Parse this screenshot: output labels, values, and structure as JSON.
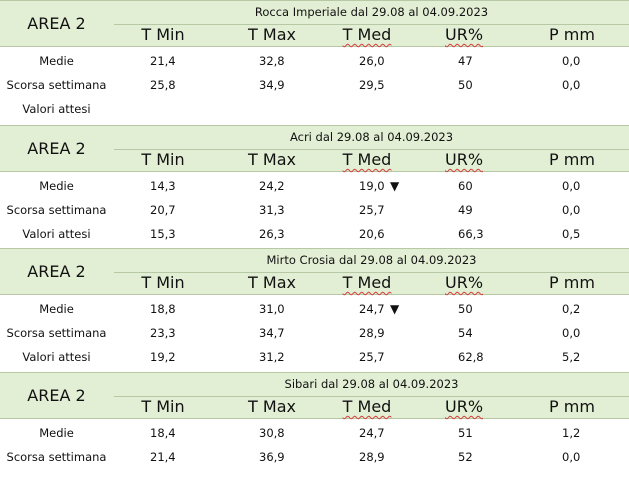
{
  "blocks": [
    {
      "area": "AREA 2",
      "title": "Rocca Imperiale  dal 29.08 al 04.09.2023",
      "headers": [
        "T Min",
        "T Max",
        "T Med",
        "UR%",
        "P mm"
      ],
      "rows": [
        {
          "label": "Medie",
          "values": [
            "21,4",
            "32,8",
            "26,0",
            "47",
            "0,0"
          ],
          "arrow": ""
        },
        {
          "label": "Scorsa settimana",
          "values": [
            "25,8",
            "34,9",
            "29,5",
            "50",
            "0,0"
          ],
          "arrow": ""
        },
        {
          "label": "Valori attesi",
          "values": [
            "",
            "",
            "",
            "",
            ""
          ],
          "arrow": ""
        }
      ]
    },
    {
      "area": "AREA 2",
      "title": "Acri dal 29.08 al 04.09.2023",
      "headers": [
        "T Min",
        "T Max",
        "T Med",
        "UR%",
        "P mm"
      ],
      "rows": [
        {
          "label": "Medie",
          "values": [
            "14,3",
            "24,2",
            "19,0",
            "60",
            "0,0"
          ],
          "arrow": "▼"
        },
        {
          "label": "Scorsa settimana",
          "values": [
            "20,7",
            "31,3",
            "25,7",
            "49",
            "0,0"
          ],
          "arrow": ""
        },
        {
          "label": "Valori attesi",
          "values": [
            "15,3",
            "26,3",
            "20,6",
            "66,3",
            "0,5"
          ],
          "arrow": ""
        }
      ]
    },
    {
      "area": "AREA 2",
      "title": "Mirto Crosia dal 29.08 al 04.09.2023",
      "headers": [
        "T Min",
        "T Max",
        "T Med",
        "UR%",
        "P mm"
      ],
      "rows": [
        {
          "label": "Medie",
          "values": [
            "18,8",
            "31,0",
            "24,7",
            "50",
            "0,2"
          ],
          "arrow": "▼"
        },
        {
          "label": "Scorsa settimana",
          "values": [
            "23,3",
            "34,7",
            "28,9",
            "54",
            "0,0"
          ],
          "arrow": ""
        },
        {
          "label": "Valori attesi",
          "values": [
            "19,2",
            "31,2",
            "25,7",
            "62,8",
            "5,2"
          ],
          "arrow": ""
        }
      ]
    },
    {
      "area": "AREA 2",
      "title": "Sibari dal 29.08 al 04.09.2023",
      "headers": [
        "T Min",
        "T Max",
        "T Med",
        "UR%",
        "P mm"
      ],
      "rows": [
        {
          "label": "Medie",
          "values": [
            "18,4",
            "30,8",
            "24,7",
            "51",
            "1,2"
          ],
          "arrow": ""
        },
        {
          "label": "Scorsa settimana",
          "values": [
            "21,4",
            "36,9",
            "28,9",
            "52",
            "0,0"
          ],
          "arrow": ""
        }
      ]
    }
  ]
}
